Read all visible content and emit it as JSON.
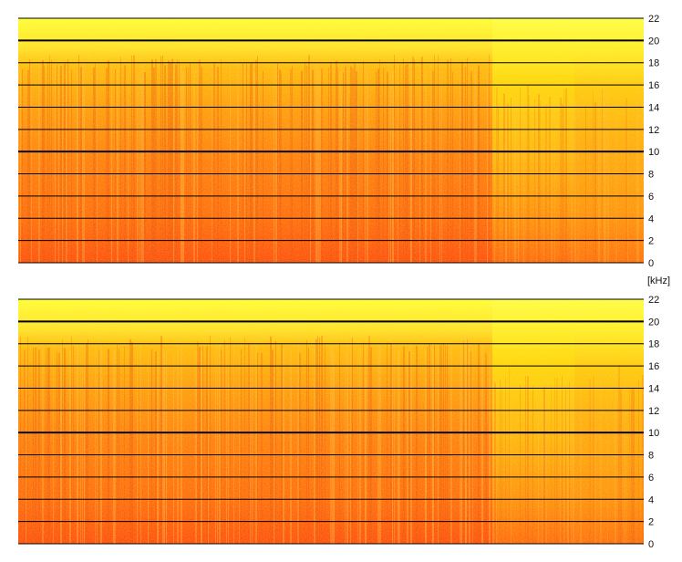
{
  "chart_data": [
    {
      "type": "heatmap",
      "panel": "top",
      "ylabel": "[kHz]",
      "ylim": [
        0,
        22
      ],
      "y_ticks": [
        0,
        2,
        4,
        6,
        8,
        10,
        12,
        14,
        16,
        18,
        20,
        22
      ],
      "y_tick_labels": [
        "0",
        "2",
        "4",
        "6",
        "8",
        "10",
        "12",
        "14",
        "16",
        "18",
        "20",
        "22"
      ],
      "major_ticks": [
        10,
        20
      ],
      "grid": true
    },
    {
      "type": "heatmap",
      "panel": "bottom",
      "ylabel": "[kHz]",
      "ylim": [
        0,
        22
      ],
      "y_ticks": [
        0,
        2,
        4,
        6,
        8,
        10,
        12,
        14,
        16,
        18,
        20,
        22
      ],
      "y_tick_labels": [
        "0",
        "2",
        "4",
        "6",
        "8",
        "10",
        "12",
        "14",
        "16",
        "18",
        "20",
        "22"
      ],
      "major_ticks": [
        10,
        20
      ],
      "grid": true
    }
  ],
  "unit_label": "[kHz]",
  "colors": {
    "low": "#ff3300",
    "mid": "#ff9900",
    "high": "#ffff33",
    "grid": "#000000"
  }
}
